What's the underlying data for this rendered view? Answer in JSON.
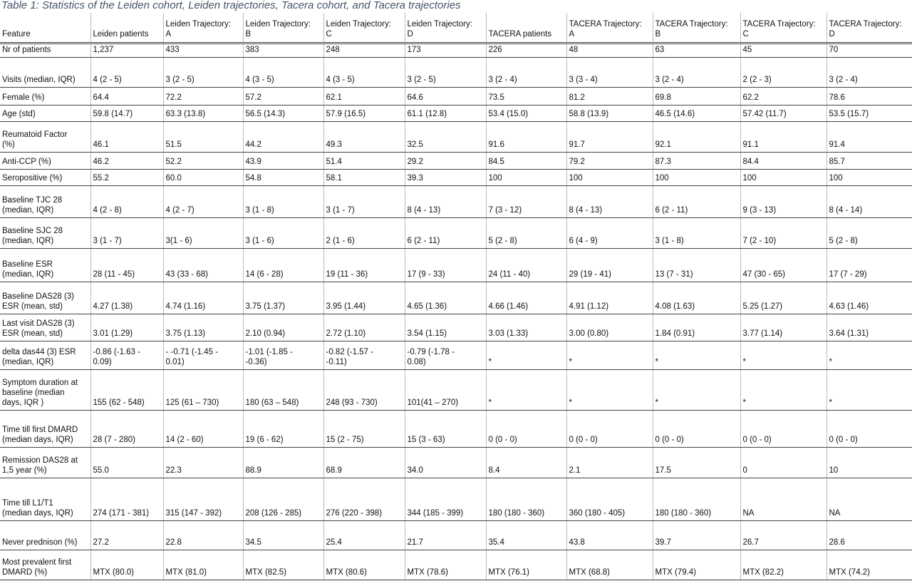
{
  "title": "Table 1: Statistics of the Leiden cohort, Leiden trajectories, Tacera cohort, and Tacera trajectories",
  "table": {
    "header": [
      [
        "Feature"
      ],
      [
        "Leiden patients"
      ],
      [
        "Leiden Trajectory:",
        "A"
      ],
      [
        "Leiden Trajectory:",
        "B"
      ],
      [
        "Leiden Trajectory:",
        "C"
      ],
      [
        "Leiden Trajectory:",
        "D"
      ],
      [
        "TACERA  patients"
      ],
      [
        "TACERA Trajectory:",
        "A"
      ],
      [
        "TACERA Trajectory:",
        "B"
      ],
      [
        "TACERA Trajectory:",
        "C"
      ],
      [
        "TACERA Trajectory:",
        "D"
      ]
    ],
    "rows": [
      {
        "feature": [
          "Nr of patients"
        ],
        "values": [
          "1,237",
          "433",
          "383",
          "248",
          "173",
          "226",
          "48",
          "63",
          "45",
          "70"
        ]
      },
      {
        "feature": [
          "Visits (median, IQR)"
        ],
        "values": [
          "4 (2 - 5)",
          "3 (2 - 5)",
          "4 (3 - 5)",
          "4 (3 - 5)",
          "3 (2 - 5)",
          "3 (2 - 4)",
          "3 (3 - 4)",
          "3 (2 - 4)",
          "2 (2 - 3)",
          "3 (2 - 4)"
        ]
      },
      {
        "feature": [
          "Female  (%)"
        ],
        "values": [
          "64.4",
          "72.2",
          "57.2",
          "62.1",
          "64.6",
          "73.5",
          "81.2",
          "69.8",
          "62.2",
          "78.6"
        ]
      },
      {
        "feature": [
          "Age (std)"
        ],
        "values": [
          "59.8 (14.7)",
          "63.3 (13.8)",
          "56.5 (14.3)",
          "57.9 (16.5)",
          "61.1 (12.8)",
          "53.4 (15.0)",
          "58.8 (13.9)",
          "46.5 (14.6)",
          "57.42 (11.7)",
          "53.5 (15.7)"
        ]
      },
      {
        "feature": [
          "Reumatoid Factor",
          "(%)"
        ],
        "values": [
          "46.1",
          "51.5",
          "44.2",
          "49.3",
          "32.5",
          "91.6",
          "91.7",
          "92.1",
          "91.1",
          "91.4"
        ]
      },
      {
        "feature": [
          "Anti-CCP (%)"
        ],
        "values": [
          "46.2",
          "52.2",
          "43.9",
          "51.4",
          "29.2",
          "84.5",
          "79.2",
          "87.3",
          "84.4",
          "85.7"
        ]
      },
      {
        "feature": [
          "Seropositive (%)"
        ],
        "values": [
          "55.2",
          "60.0",
          "54.8",
          "58.1",
          "39.3",
          "100",
          "100",
          "100",
          "100",
          "100"
        ]
      },
      {
        "feature": [
          "Baseline TJC 28",
          "(median, IQR)"
        ],
        "values": [
          "4 (2 - 8)",
          "4 (2 - 7)",
          "3 (1 - 8)",
          "3 (1 - 7)",
          "8 (4 - 13)",
          "7 (3 - 12)",
          "8 (4 - 13)",
          "6 (2 - 11)",
          "9 (3 - 13)",
          "8 (4 - 14)"
        ]
      },
      {
        "feature": [
          "Baseline SJC 28",
          "(median, IQR)"
        ],
        "values": [
          "3 (1 - 7)",
          "3(1 - 6)",
          "3 (1 - 6)",
          "2 (1 - 6)",
          "6 (2 - 11)",
          "5 (2 - 8)",
          "6 (4 - 9)",
          "3 (1 - 8)",
          "7 (2 - 10)",
          "5 (2 - 8)"
        ]
      },
      {
        "feature": [
          "Baseline ESR",
          "(median, IQR)"
        ],
        "values": [
          "28  (11 - 45)",
          "43 (33 - 68)",
          "14 (6 - 28)",
          "19 (11 - 36)",
          "17 (9 - 33)",
          "24 (11 - 40)",
          "29 (19 - 41)",
          "13 (7 - 31)",
          "47 (30 - 65)",
          "17 (7 - 29)"
        ]
      },
      {
        "feature": [
          "Baseline DAS28  (3)",
          "ESR (mean, std)"
        ],
        "values": [
          "4.27 (1.38)",
          "4.74 (1.16)",
          "3.75 (1.37)",
          "3.95 (1.44)",
          "4.65 (1.36)",
          "4.66 (1.46)",
          "4.91 (1.12)",
          "4.08 (1.63)",
          "5.25 (1.27)",
          "4.63 (1.46)"
        ]
      },
      {
        "feature": [
          "Last visit DAS28 (3)",
          "ESR (mean, std)"
        ],
        "values": [
          "3.01 (1.29)",
          "3.75 (1.13)",
          "2.10 (0.94)",
          "2.72 (1.10)",
          "3.54 (1.15)",
          "3.03 (1.33)",
          "3.00 (0.80)",
          "1.84 (0.91)",
          "3.77 (1.14)",
          "3.64 (1.31)"
        ]
      },
      {
        "feature": [
          "delta das44 (3) ESR",
          "(median, IQR)"
        ],
        "values": [
          [
            "-0.86  (-1.63 -",
            "0.09)"
          ],
          [
            "- -0.71  (-1.45 -",
            "0.01)"
          ],
          [
            "-1.01  (-1.85 -",
            "-0.36)"
          ],
          [
            "-0.82  (-1.57 -",
            "-0.11)"
          ],
          [
            "-0.79  (-1.78 -",
            "0.08)"
          ],
          "*",
          "*",
          "*",
          "*",
          "*"
        ]
      },
      {
        "feature": [
          "Symptom duration at",
          "baseline (median",
          "days,  IQR )"
        ],
        "values": [
          "155 (62 - 548)",
          "125 (61 – 730)",
          "180 (63 – 548)",
          "248 (93 - 730)",
          "101(41 – 270)",
          "*",
          "*",
          "*",
          "*",
          "*"
        ]
      },
      {
        "feature": [
          "Time till first DMARD",
          "(median days, IQR)"
        ],
        "values": [
          "28 (7 - 280)",
          "14 (2 - 60)",
          "19 (6 - 62)",
          "15 (2 - 75)",
          "15 (3 - 63)",
          "0 (0 - 0)",
          "0 (0 - 0)",
          "0 (0 - 0)",
          "0 (0 - 0)",
          "0 (0 - 0)"
        ]
      },
      {
        "feature": [
          "Remission DAS28 at",
          "1,5 year (%)"
        ],
        "values": [
          "55.0",
          "22.3",
          "88.9",
          "68.9",
          "34.0",
          "8.4",
          "2.1",
          "17.5",
          "0",
          "10"
        ]
      },
      {
        "feature": [
          "Time till L1/T1",
          "(median days, IQR)"
        ],
        "values": [
          "274 (171  - 381)",
          "315 (147 - 392)",
          "208 (126 - 285)",
          "276 (220 - 398)",
          "344 (185 - 399)",
          "180 (180 - 360)",
          "360 (180 - 405)",
          "180 (180 - 360)",
          "NA",
          "NA"
        ]
      },
      {
        "feature": [
          "Never prednison (%)"
        ],
        "values": [
          "27.2",
          "22.8",
          "34.5",
          "25.4",
          "21.7",
          "35.4",
          "43.8",
          "39.7",
          "26.7",
          "28.6"
        ]
      },
      {
        "feature": [
          "Most prevalent first",
          "DMARD (%)"
        ],
        "values": [
          "MTX (80.0)",
          "MTX (81.0)",
          "MTX (82.5)",
          "MTX (80.6)",
          "MTX (78.6)",
          "MTX (76.1)",
          "MTX (68.8)",
          "MTX (79.4)",
          "MTX (82.2)",
          "MTX (74.2)"
        ]
      }
    ]
  }
}
